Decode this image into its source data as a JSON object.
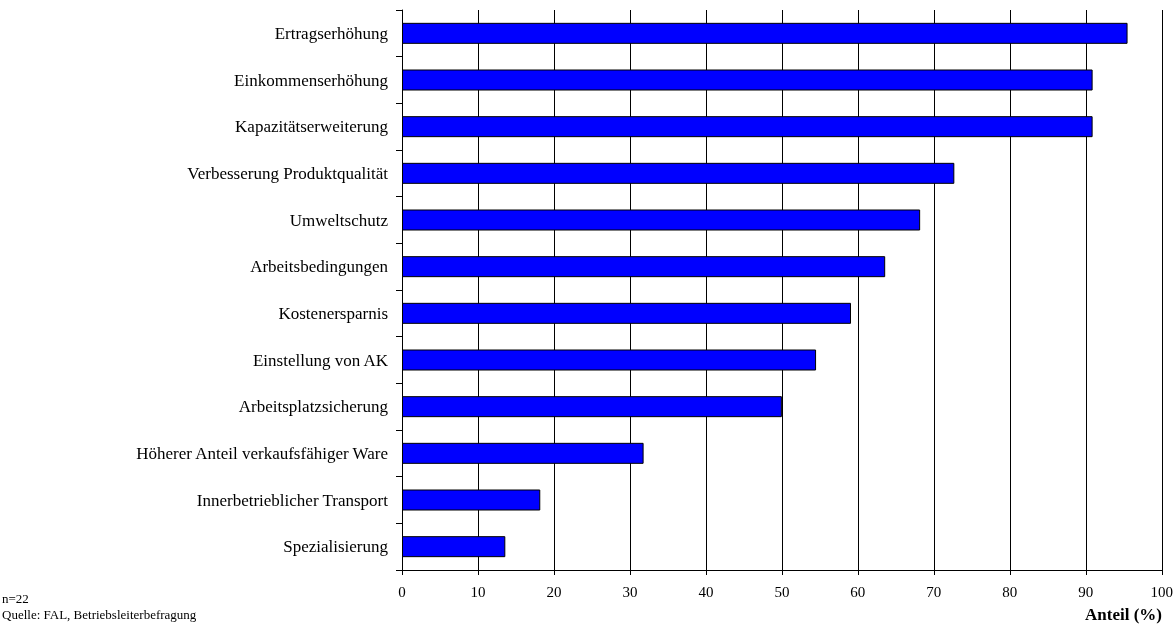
{
  "chart_data": {
    "type": "bar",
    "orientation": "horizontal",
    "xlabel": "Anteil (%)",
    "categories": [
      "Ertragserhöhung",
      "Einkommenserhöhung",
      "Kapazitätserweiterung",
      "Verbesserung Produktqualität",
      "Umweltschutz",
      "Arbeitsbedingungen",
      "Kostenersparnis",
      "Einstellung von AK",
      "Arbeitsplatzsicherung",
      "Höherer Anteil verkaufsfähiger Ware",
      "Innerbetrieblicher Transport",
      "Spezialisierung"
    ],
    "values": [
      95.5,
      90.9,
      90.9,
      72.7,
      68.2,
      63.6,
      59.1,
      54.5,
      50,
      31.8,
      18.2,
      13.6
    ],
    "color": "#0000ff",
    "xlim": [
      0,
      100
    ],
    "xticks": [
      0,
      10,
      20,
      30,
      40,
      50,
      60,
      70,
      80,
      90,
      100
    ],
    "grid": "x",
    "annotations": [
      "n=22",
      "Quelle: FAL, Betriebsleiterbefragung"
    ]
  }
}
